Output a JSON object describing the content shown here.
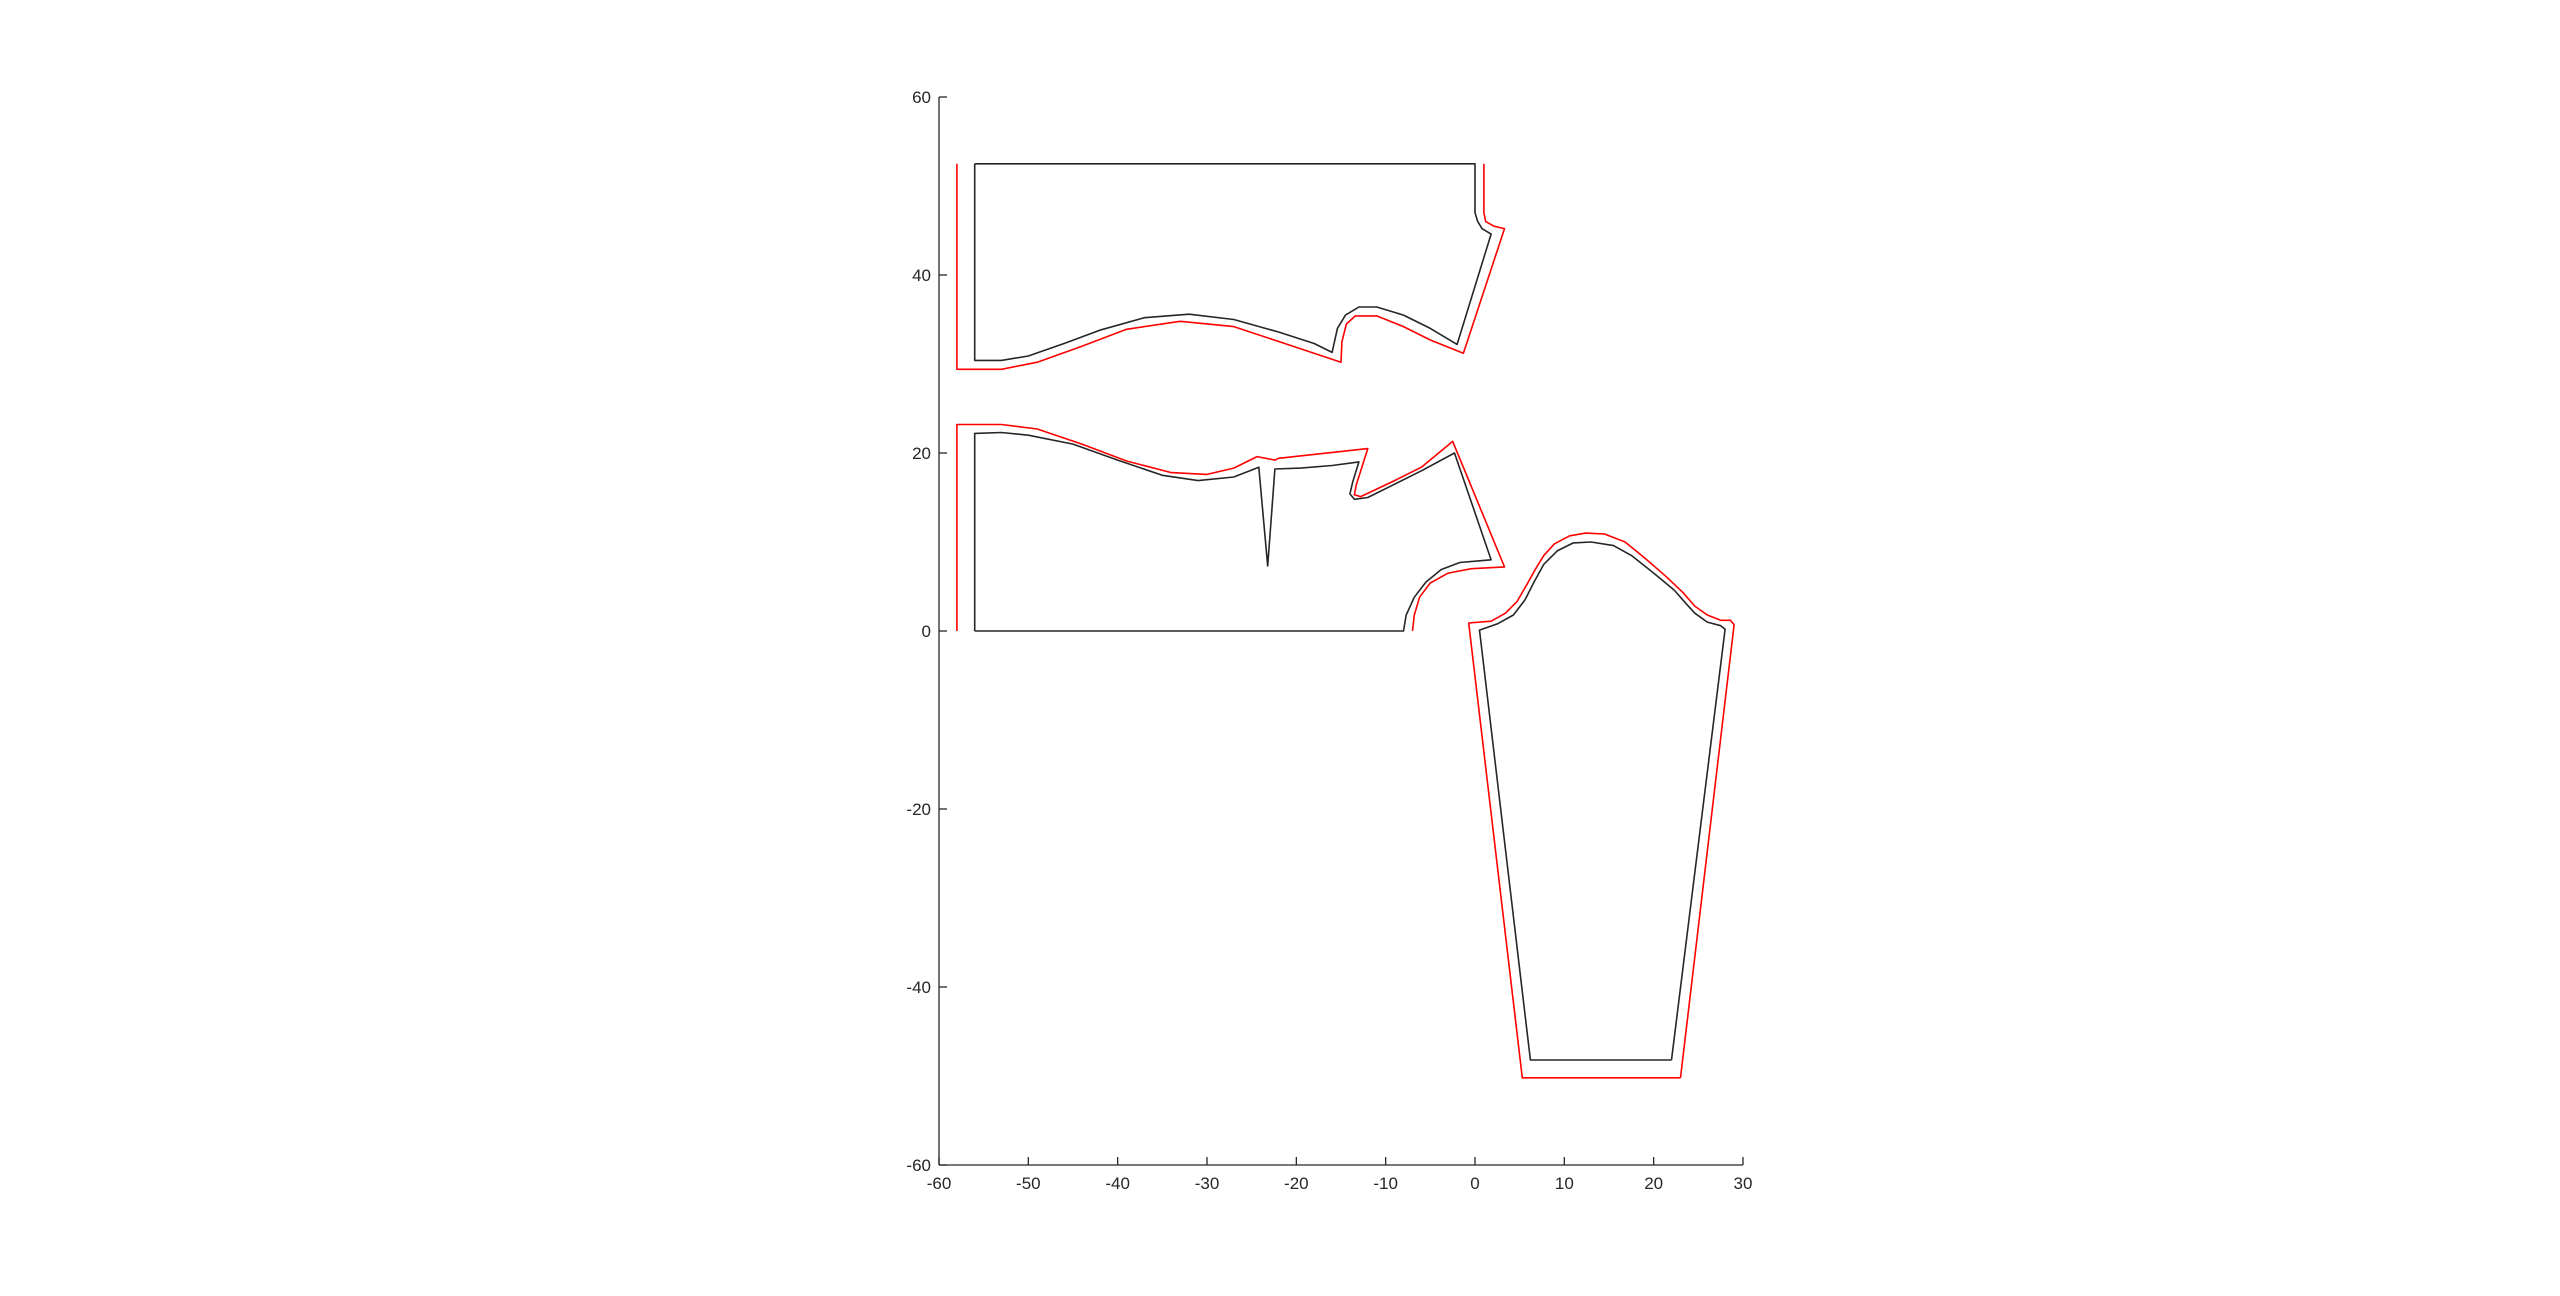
{
  "chart_data": {
    "type": "line",
    "title": "",
    "xlabel": "",
    "ylabel": "",
    "xlim": [
      -60,
      30
    ],
    "ylim": [
      -60,
      60
    ],
    "xticks": [
      "-60",
      "-50",
      "-40",
      "-30",
      "-20",
      "-10",
      "0",
      "10",
      "20",
      "30"
    ],
    "yticks": [
      "-60",
      "-40",
      "-20",
      "0",
      "20",
      "40",
      "60"
    ],
    "grid": false,
    "legend": "none",
    "colors": {
      "pattern": "#262626",
      "seam_allowance": "#ff0000"
    },
    "series": [
      {
        "color": "#262626",
        "points": [
          [
            -56,
            52.5
          ],
          [
            0,
            52.5
          ],
          [
            0,
            47
          ],
          [
            0.3,
            46
          ],
          [
            0.8,
            45.2
          ],
          [
            1.8,
            44.6
          ],
          [
            -2,
            32.2
          ],
          [
            -5,
            34
          ],
          [
            -8,
            35.5
          ],
          [
            -11,
            36.4
          ],
          [
            -13,
            36.4
          ],
          [
            -14.5,
            35.5
          ],
          [
            -15.4,
            34
          ],
          [
            -16,
            31.3
          ],
          [
            -18,
            32.3
          ],
          [
            -22,
            33.6
          ],
          [
            -27,
            35
          ],
          [
            -32,
            35.6
          ],
          [
            -37,
            35.2
          ],
          [
            -42,
            33.8
          ],
          [
            -46,
            32.3
          ],
          [
            -50,
            30.9
          ],
          [
            -53,
            30.4
          ],
          [
            -56,
            30.4
          ],
          [
            -56,
            52.5
          ]
        ]
      },
      {
        "color": "#ff0000",
        "points": [
          [
            -58,
            52.5
          ],
          [
            -58,
            29.4
          ],
          [
            -53,
            29.4
          ],
          [
            -49,
            30.2
          ],
          [
            -44,
            32
          ],
          [
            -39,
            33.9
          ],
          [
            -33,
            34.8
          ],
          [
            -27,
            34.2
          ],
          [
            -21,
            32.2
          ],
          [
            -15,
            30.2
          ],
          [
            -14.9,
            32.5
          ],
          [
            -14.4,
            34.5
          ],
          [
            -13.4,
            35.4
          ],
          [
            -11,
            35.4
          ],
          [
            -8,
            34.2
          ],
          [
            -5,
            32.7
          ],
          [
            -1.3,
            31.2
          ],
          [
            3.3,
            45.2
          ],
          [
            2.1,
            45.5
          ],
          [
            1.2,
            46
          ],
          [
            1,
            47
          ],
          [
            1,
            52.5
          ]
        ]
      },
      {
        "color": "#262626",
        "points": [
          [
            -56,
            0
          ],
          [
            -8,
            0
          ],
          [
            -7.7,
            1.8
          ],
          [
            -6.8,
            3.8
          ],
          [
            -5.5,
            5.5
          ],
          [
            -3.8,
            6.9
          ],
          [
            -1.7,
            7.7
          ],
          [
            1.8,
            8
          ],
          [
            -2.3,
            20
          ],
          [
            -6,
            18
          ],
          [
            -9,
            16.5
          ],
          [
            -12,
            15
          ],
          [
            -13.5,
            14.8
          ],
          [
            -14,
            15.4
          ],
          [
            -13.7,
            16.7
          ],
          [
            -13,
            19
          ],
          [
            -16,
            18.6
          ],
          [
            -19.5,
            18.3
          ],
          [
            -22.4,
            18.2
          ],
          [
            -23.2,
            7.3
          ],
          [
            -24.2,
            18.4
          ],
          [
            -27,
            17.3
          ],
          [
            -31,
            16.9
          ],
          [
            -35,
            17.5
          ],
          [
            -40,
            19.2
          ],
          [
            -45,
            21
          ],
          [
            -50,
            22
          ],
          [
            -53,
            22.3
          ],
          [
            -56,
            22.2
          ],
          [
            -56,
            0
          ]
        ]
      },
      {
        "color": "#ff0000",
        "points": [
          [
            -58,
            0
          ],
          [
            -58,
            23.2
          ],
          [
            -53,
            23.2
          ],
          [
            -49,
            22.7
          ],
          [
            -44,
            21
          ],
          [
            -39,
            19.1
          ],
          [
            -34,
            17.8
          ],
          [
            -30,
            17.6
          ],
          [
            -27,
            18.3
          ],
          [
            -24.4,
            19.6
          ],
          [
            -22.4,
            19.2
          ],
          [
            -22,
            19.4
          ],
          [
            -12,
            20.5
          ],
          [
            -13.3,
            16.4
          ],
          [
            -13.5,
            15.3
          ],
          [
            -12.8,
            15.1
          ],
          [
            -9,
            16.9
          ],
          [
            -6,
            18.4
          ],
          [
            -2.5,
            21.3
          ],
          [
            3.3,
            7.2
          ],
          [
            -0.4,
            7
          ],
          [
            -3,
            6.5
          ],
          [
            -5,
            5.4
          ],
          [
            -6.2,
            3.8
          ],
          [
            -6.8,
            1.8
          ],
          [
            -7,
            0
          ]
        ]
      },
      {
        "color": "#262626",
        "points": [
          [
            22,
            -48.2
          ],
          [
            28,
            0.2
          ],
          [
            27.5,
            0.6
          ],
          [
            26,
            1
          ],
          [
            24.6,
            2
          ],
          [
            23.7,
            3
          ],
          [
            22.3,
            4.6
          ],
          [
            20,
            6.5
          ],
          [
            17.5,
            8.5
          ],
          [
            15.5,
            9.6
          ],
          [
            13,
            10
          ],
          [
            11,
            9.9
          ],
          [
            9.2,
            9
          ],
          [
            7.7,
            7.5
          ],
          [
            6.6,
            5.5
          ],
          [
            5.6,
            3.5
          ],
          [
            4.3,
            1.8
          ],
          [
            2.5,
            0.8
          ],
          [
            0.5,
            0.1
          ],
          [
            6.2,
            -48.2
          ],
          [
            22,
            -48.2
          ]
        ]
      },
      {
        "color": "#ff0000",
        "points": [
          [
            23,
            -50.2
          ],
          [
            29,
            0.7
          ],
          [
            28.6,
            1.2
          ],
          [
            27.5,
            1.2
          ],
          [
            26,
            1.8
          ],
          [
            24.6,
            2.8
          ],
          [
            23.3,
            4.3
          ],
          [
            21.3,
            6.2
          ],
          [
            19,
            8.2
          ],
          [
            16.8,
            10
          ],
          [
            14.5,
            10.9
          ],
          [
            12.4,
            11
          ],
          [
            10.6,
            10.7
          ],
          [
            8.9,
            9.8
          ],
          [
            7.7,
            8.5
          ],
          [
            6.8,
            7
          ],
          [
            5.8,
            5.2
          ],
          [
            4.7,
            3.3
          ],
          [
            3.4,
            2
          ],
          [
            1.8,
            1.1
          ],
          [
            -0.7,
            0.9
          ],
          [
            5.3,
            -50.2
          ],
          [
            23,
            -50.2
          ]
        ]
      }
    ]
  }
}
